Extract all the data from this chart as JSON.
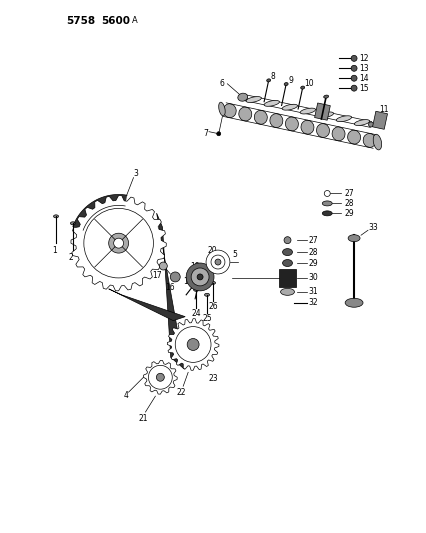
{
  "bg_color": "#ffffff",
  "line_color": "#000000",
  "fig_width": 4.27,
  "fig_height": 5.33,
  "dpi": 100,
  "title1": "5758",
  "title2": "5600",
  "title3": "A"
}
